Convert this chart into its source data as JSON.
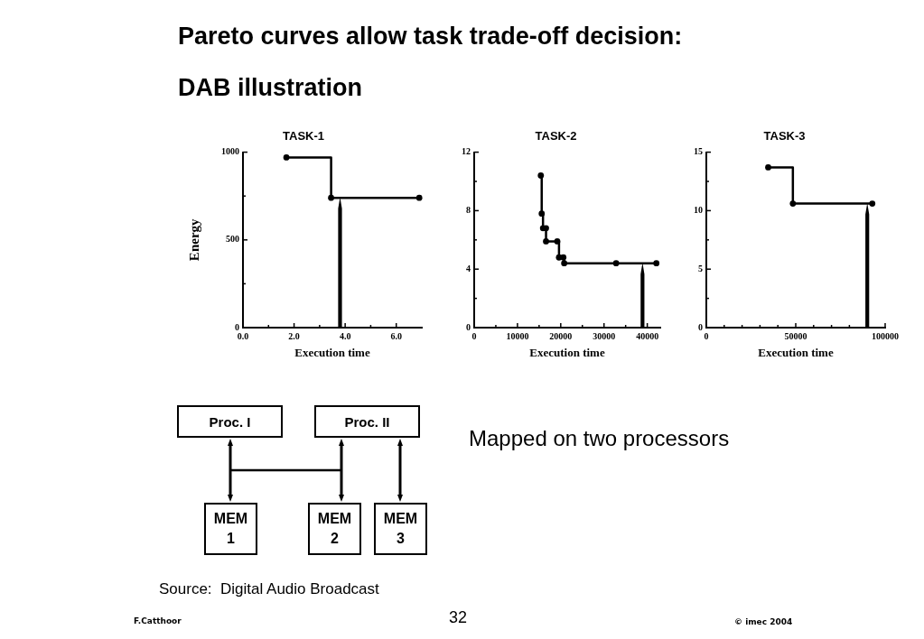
{
  "chart_data": [
    {
      "type": "step",
      "title": "TASK-1",
      "xlabel": "Execution time",
      "ylabel": "Energy",
      "x": [
        1.7,
        3.45,
        6.9
      ],
      "values": [
        970,
        740,
        740
      ],
      "color": "#000000",
      "xlim": [
        0,
        7
      ],
      "xticks": [
        {
          "value": 0,
          "label": "0.0"
        },
        {
          "value": 1,
          "label": null
        },
        {
          "value": 2,
          "label": "2.0"
        },
        {
          "value": 3,
          "label": null
        },
        {
          "value": 4,
          "label": "4.0"
        },
        {
          "value": 5,
          "label": null
        },
        {
          "value": 6,
          "label": "6.0"
        }
      ],
      "ylim": [
        0,
        1000
      ],
      "yticks": [
        0,
        {
          "value": 250,
          "label": null
        },
        500,
        {
          "value": 750,
          "label": null
        },
        1000
      ],
      "ref_lines": [
        {
          "axis": "x",
          "value": 3.8,
          "color": "#000000"
        }
      ],
      "marker": "circle",
      "line_style": "solid"
    },
    {
      "type": "step",
      "title": "TASK-2",
      "xlabel": "Execution time",
      "x": [
        15400,
        15600,
        15900,
        16600,
        16600,
        19200,
        19600,
        20600,
        20800,
        32800,
        42100
      ],
      "values": [
        10.4,
        7.8,
        6.8,
        6.8,
        5.9,
        5.9,
        4.8,
        4.8,
        4.4,
        4.4,
        4.4
      ],
      "color": "#000000",
      "xlim": [
        0,
        43000
      ],
      "xticks": [
        0,
        {
          "value": 5000,
          "label": null
        },
        10000,
        {
          "value": 15000,
          "label": null
        },
        20000,
        {
          "value": 25000,
          "label": null
        },
        30000,
        {
          "value": 35000,
          "label": null
        },
        40000
      ],
      "ylim": [
        0,
        12
      ],
      "yticks": [
        0,
        {
          "value": 2,
          "label": null
        },
        4,
        {
          "value": 6,
          "label": null
        },
        8,
        {
          "value": 10,
          "label": null
        },
        12
      ],
      "ref_lines": [
        {
          "axis": "x",
          "value": 38900,
          "color": "#000000"
        }
      ],
      "marker": "circle",
      "line_style": "solid"
    },
    {
      "type": "step",
      "title": "TASK-3",
      "xlabel": "Execution time",
      "x": [
        34600,
        48400,
        92800
      ],
      "values": [
        13.7,
        10.6,
        10.6
      ],
      "color": "#000000",
      "xlim": [
        0,
        100000
      ],
      "xticks": [
        0,
        {
          "value": 10000,
          "label": null
        },
        {
          "value": 20000,
          "label": null
        },
        {
          "value": 30000,
          "label": null
        },
        {
          "value": 40000,
          "label": null
        },
        50000,
        {
          "value": 60000,
          "label": null
        },
        {
          "value": 70000,
          "label": null
        },
        {
          "value": 80000,
          "label": null
        },
        {
          "value": 90000,
          "label": null
        },
        100000
      ],
      "ylim": [
        0,
        15
      ],
      "yticks": [
        0,
        {
          "value": 2.5,
          "label": null
        },
        5,
        {
          "value": 7.5,
          "label": null
        },
        10,
        {
          "value": 12.5,
          "label": null
        },
        15
      ],
      "ref_lines": [
        {
          "axis": "x",
          "value": 90000,
          "color": "#000000"
        }
      ],
      "marker": "circle",
      "line_style": "solid"
    },
    {
      "type": "other",
      "title": "Pareto curves allow task trade-off decision: DAB illustration",
      "annotations": [
        "Proc. I",
        "Proc. II",
        "MEM 1",
        "MEM 2",
        "MEM 3",
        "Mapped on two processors",
        "Source:  Digital Audio Broadcast",
        "F.Catthoor",
        "32",
        "© imec 2004"
      ]
    }
  ]
}
